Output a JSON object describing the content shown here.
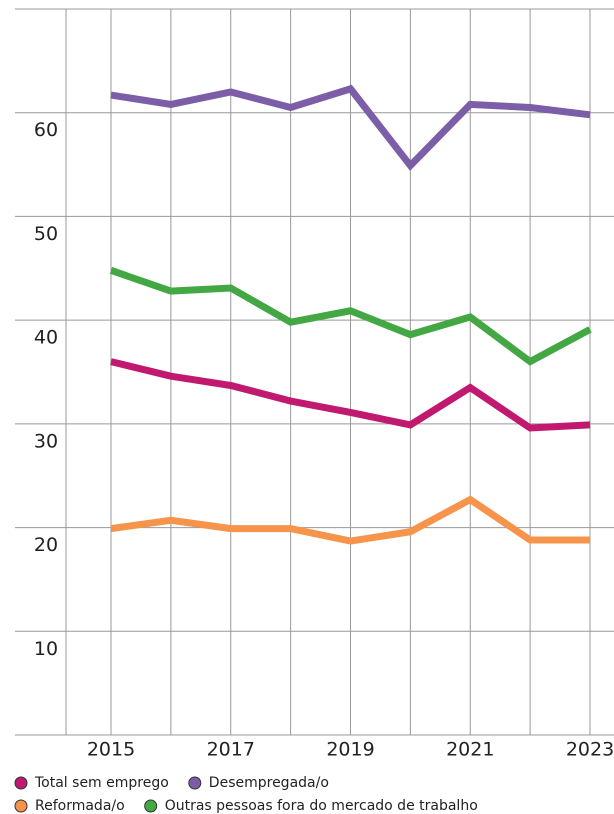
{
  "chart_data": {
    "type": "line",
    "x": [
      2015,
      2016,
      2017,
      2018,
      2019,
      2020,
      2021,
      2022,
      2023
    ],
    "series": [
      {
        "name": "Total sem emprego",
        "color": "#c0196f",
        "values": [
          36.0,
          34.6,
          33.7,
          32.2,
          31.1,
          29.9,
          33.5,
          29.6,
          29.9
        ]
      },
      {
        "name": "Desempregada/o",
        "color": "#7b5ea7",
        "values": [
          61.7,
          60.8,
          62.0,
          60.5,
          62.3,
          54.9,
          60.8,
          60.5,
          59.8
        ]
      },
      {
        "name": "Reformada/o",
        "color": "#f5944a",
        "values": [
          19.9,
          20.7,
          19.9,
          19.9,
          18.7,
          19.6,
          22.7,
          18.8,
          18.8
        ]
      },
      {
        "name": "Outras pessoas fora do mercado de trabalho",
        "color": "#43a843",
        "values": [
          44.8,
          42.8,
          43.1,
          39.8,
          40.9,
          38.6,
          40.3,
          36.0,
          39.1
        ]
      }
    ],
    "xlim": [
      2015,
      2023
    ],
    "xticks": [
      2015,
      2017,
      2019,
      2021,
      2023
    ],
    "minor_xticks": [
      2016,
      2018,
      2020,
      2022
    ],
    "ylim": [
      0,
      70
    ],
    "yticks": [
      0,
      10,
      20,
      30,
      40,
      50,
      60,
      70
    ],
    "grid": true
  }
}
